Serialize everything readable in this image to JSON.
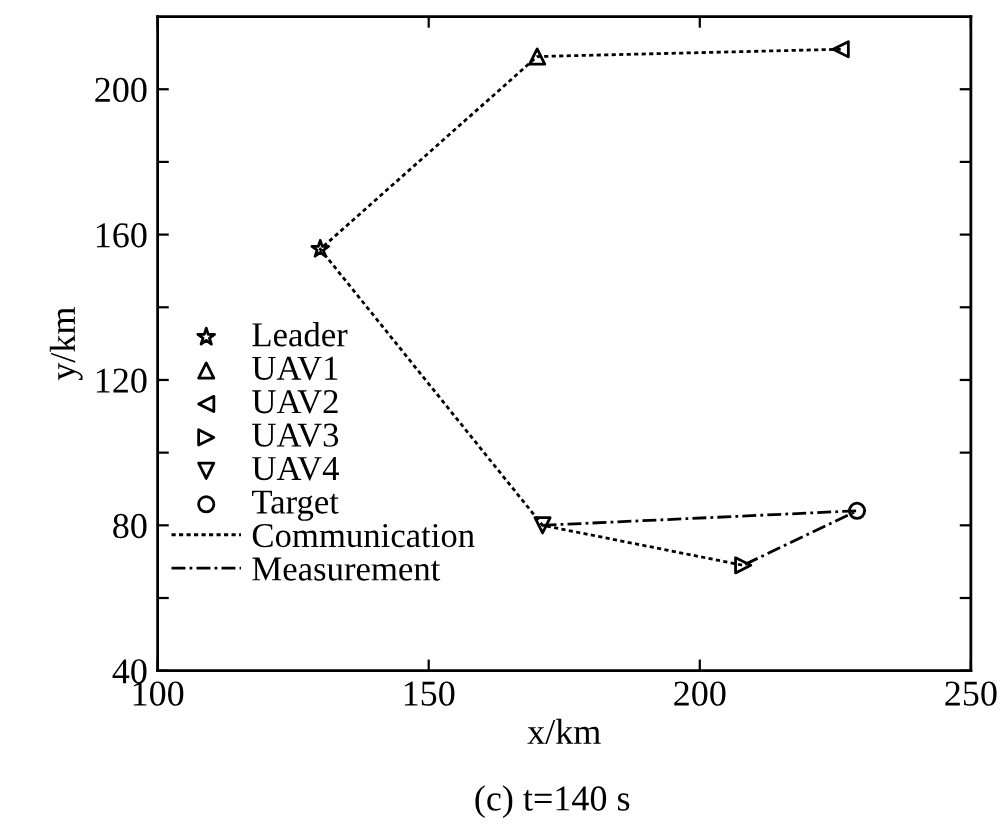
{
  "chart_data": {
    "type": "scatter",
    "title": "(c) t=140 s",
    "xlabel": "x/km",
    "ylabel": "y/km",
    "xlim": [
      100,
      250
    ],
    "xticks": [
      100,
      150,
      200,
      250
    ],
    "ylim": [
      40,
      220
    ],
    "yticks": [
      40,
      {
        "value": 60,
        "label": null
      },
      80,
      {
        "value": 100,
        "label": null
      },
      120,
      {
        "value": 140,
        "label": null
      },
      160,
      {
        "value": 180,
        "label": null
      },
      200
    ],
    "grid": false,
    "legend": "left",
    "series": [
      {
        "name": "Leader",
        "color": "#000000",
        "marker": "star",
        "x": [
          130
        ],
        "values": [
          156
        ]
      },
      {
        "name": "UAV1",
        "color": "#000000",
        "marker": "triangle",
        "x": [
          170
        ],
        "values": [
          209
        ]
      },
      {
        "name": "UAV2",
        "color": "#000000",
        "marker": "triangle-left",
        "x": [
          226
        ],
        "values": [
          211
        ]
      },
      {
        "name": "UAV3",
        "color": "#000000",
        "marker": "triangle-right",
        "x": [
          208
        ],
        "values": [
          69
        ]
      },
      {
        "name": "UAV4",
        "color": "#000000",
        "marker": "triangle-down",
        "x": [
          171
        ],
        "values": [
          80
        ]
      },
      {
        "name": "Target",
        "color": "#000000",
        "marker": "circle",
        "x": [
          229
        ],
        "values": [
          84
        ]
      },
      {
        "name": "Communication",
        "type": "line",
        "color": "#000000",
        "marker": "none",
        "line_style": "dotted",
        "x": [
          226,
          170,
          130,
          171,
          208
        ],
        "values": [
          211,
          209,
          156,
          80,
          69
        ]
      },
      {
        "name": "Measurement",
        "type": "line",
        "color": "#000000",
        "marker": "none",
        "line_style": "dashdot",
        "x": [
          171,
          229,
          208
        ],
        "values": [
          80,
          84,
          69
        ]
      }
    ]
  }
}
